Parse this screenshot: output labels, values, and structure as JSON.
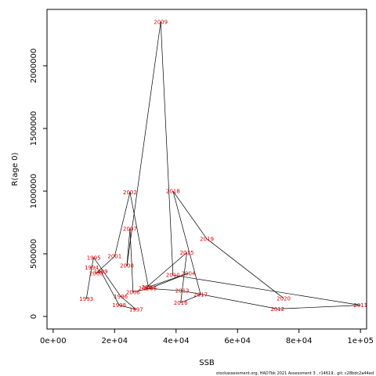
{
  "chart_data": {
    "type": "line",
    "title": "",
    "xlabel": "SSB",
    "ylabel": "R(age 0)",
    "xlim": [
      -2000,
      102000
    ],
    "ylim": [
      -100000,
      2450000
    ],
    "x_ticks": [
      {
        "value": 0,
        "label": "0e+00"
      },
      {
        "value": 20000,
        "label": "2e+04"
      },
      {
        "value": 40000,
        "label": "4e+04"
      },
      {
        "value": 60000,
        "label": "6e+04"
      },
      {
        "value": 80000,
        "label": "8e+04"
      },
      {
        "value": 100000,
        "label": "1e+05"
      }
    ],
    "y_ticks": [
      {
        "value": 0,
        "label": "0"
      },
      {
        "value": 500000,
        "label": "500000"
      },
      {
        "value": 1000000,
        "label": "1000000"
      },
      {
        "value": 1500000,
        "label": "1500000"
      },
      {
        "value": 2000000,
        "label": "2000000"
      }
    ],
    "line_color": "#000000",
    "label_color": "#e00000",
    "points": [
      {
        "year": "1993",
        "ssb": 10800,
        "rec": 140000
      },
      {
        "year": "1994",
        "ssb": 12500,
        "rec": 390000
      },
      {
        "year": "1995",
        "ssb": 13200,
        "rec": 470000
      },
      {
        "year": "1996",
        "ssb": 22000,
        "rec": 160000
      },
      {
        "year": "1997",
        "ssb": 27000,
        "rec": 55000
      },
      {
        "year": "1998",
        "ssb": 21500,
        "rec": 90000
      },
      {
        "year": "1999",
        "ssb": 15500,
        "rec": 360000
      },
      {
        "year": "2000",
        "ssb": 14000,
        "rec": 345000
      },
      {
        "year": "2001",
        "ssb": 20000,
        "rec": 480000
      },
      {
        "year": "2002",
        "ssb": 25000,
        "rec": 990000
      },
      {
        "year": "2003",
        "ssb": 31000,
        "rec": 235000
      },
      {
        "year": "2004",
        "ssb": 44000,
        "rec": 345000
      },
      {
        "year": "2005",
        "ssb": 31500,
        "rec": 225000
      },
      {
        "year": "2006",
        "ssb": 26000,
        "rec": 195000
      },
      {
        "year": "2007",
        "ssb": 25000,
        "rec": 700000
      },
      {
        "year": "2008",
        "ssb": 24000,
        "rec": 405000
      },
      {
        "year": "2009",
        "ssb": 35000,
        "rec": 2350000
      },
      {
        "year": "2010",
        "ssb": 39000,
        "rec": 330000
      },
      {
        "year": "2011",
        "ssb": 100000,
        "rec": 90000
      },
      {
        "year": "2012",
        "ssb": 73000,
        "rec": 60000
      },
      {
        "year": "2013",
        "ssb": 42000,
        "rec": 205000
      },
      {
        "year": "2014",
        "ssb": 30000,
        "rec": 225000
      },
      {
        "year": "2015",
        "ssb": 43500,
        "rec": 510000
      },
      {
        "year": "2016",
        "ssb": 41500,
        "rec": 110000
      },
      {
        "year": "2017",
        "ssb": 48000,
        "rec": 175000
      },
      {
        "year": "2018",
        "ssb": 39000,
        "rec": 1000000
      },
      {
        "year": "2019",
        "ssb": 50000,
        "rec": 620000
      },
      {
        "year": "2020",
        "ssb": 75000,
        "rec": 145000
      }
    ]
  },
  "footnote": "stockassessment.org,  HAD7bk  2021  Assessment  3 , r14619 ,  git:  c28bdc2a44ed"
}
